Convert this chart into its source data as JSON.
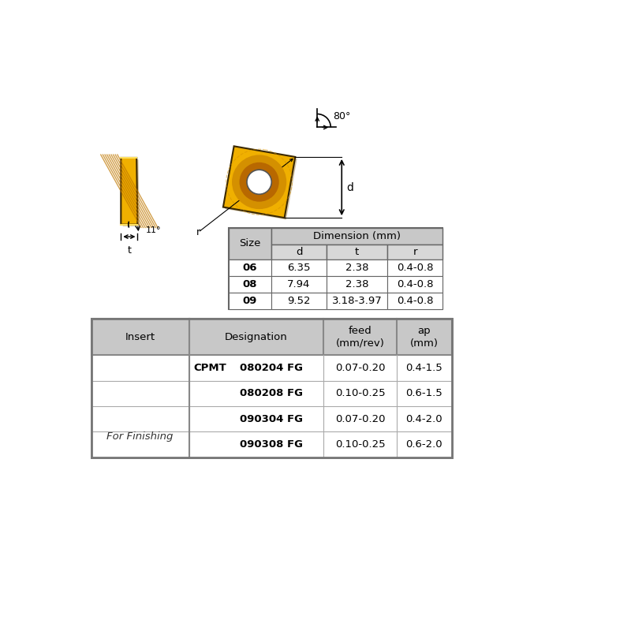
{
  "bg_color": "#ffffff",
  "table1_header_bg": "#c8c8c8",
  "table1_subheader_bg": "#d8d8d8",
  "table2_header_bg": "#c8c8c8",
  "insert_yellow": "#F0B000",
  "insert_dark_yellow": "#C07800",
  "insert_mid_yellow": "#D49000",
  "insert_inner": "#B86800",
  "dim_table_title": "Dimension (mm)",
  "dim_table_col_headers": [
    "d",
    "t",
    "r"
  ],
  "dim_table_size_header": "Size",
  "dim_table_rows": [
    [
      "06",
      "6.35",
      "2.38",
      "0.4-0.8"
    ],
    [
      "08",
      "7.94",
      "2.38",
      "0.4-0.8"
    ],
    [
      "09",
      "9.52",
      "3.18-3.97",
      "0.4-0.8"
    ]
  ],
  "prod_table_headers": [
    "Insert",
    "Designation",
    "feed\n(mm/rev)",
    "ap\n(mm)"
  ],
  "prod_table_rows": [
    [
      "CPMT",
      "080204 FG",
      "0.07-0.20",
      "0.4-1.5"
    ],
    [
      "",
      "080208 FG",
      "0.10-0.25",
      "0.6-1.5"
    ],
    [
      "",
      "090304 FG",
      "0.07-0.20",
      "0.4-2.0"
    ],
    [
      "",
      "090308 FG",
      "0.10-0.25",
      "0.6-2.0"
    ]
  ],
  "for_finishing_text": "For Finishing",
  "angle_80": "80°",
  "angle_11": "11°",
  "dim_d": "d",
  "dim_t": "t",
  "dim_r": "r"
}
